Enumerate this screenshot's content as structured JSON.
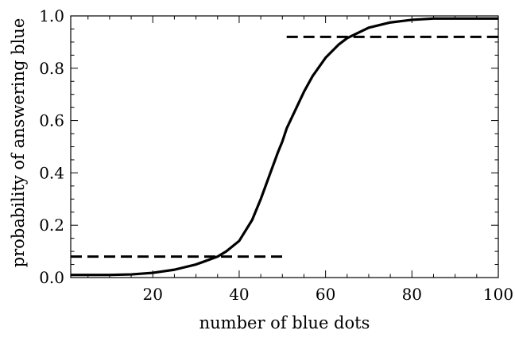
{
  "chart_data": {
    "type": "line",
    "title": "",
    "xlabel": "number of blue dots",
    "ylabel": "probability of answering blue",
    "xlim": [
      1,
      100
    ],
    "ylim": [
      0,
      1
    ],
    "x_ticks": [
      20,
      40,
      60,
      80,
      100
    ],
    "y_ticks": [
      0.0,
      0.2,
      0.4,
      0.6,
      0.8,
      1.0
    ],
    "x_tick_labels": [
      "20",
      "40",
      "60",
      "80",
      "100"
    ],
    "y_tick_labels": [
      "0.0",
      "0.2",
      "0.4",
      "0.6",
      "0.8",
      "1.0"
    ],
    "grid": false,
    "legend": "none",
    "series": [
      {
        "style": "solid",
        "color": "#000000",
        "x": [
          1,
          5,
          10,
          15,
          20,
          25,
          30,
          35,
          37,
          40,
          43,
          45,
          47,
          49,
          50,
          51,
          53,
          55,
          57,
          60,
          63,
          65,
          70,
          75,
          80,
          85,
          90,
          95,
          100
        ],
        "y": [
          0.01,
          0.01,
          0.01,
          0.012,
          0.018,
          0.03,
          0.05,
          0.08,
          0.1,
          0.14,
          0.22,
          0.3,
          0.39,
          0.48,
          0.52,
          0.57,
          0.64,
          0.71,
          0.77,
          0.84,
          0.89,
          0.915,
          0.955,
          0.975,
          0.985,
          0.99,
          0.99,
          0.99,
          0.99
        ]
      },
      {
        "style": "dashed",
        "color": "#000000",
        "x": [
          1,
          50
        ],
        "y": [
          0.08,
          0.08
        ]
      },
      {
        "style": "dashed",
        "color": "#000000",
        "x": [
          51,
          100
        ],
        "y": [
          0.92,
          0.92
        ]
      }
    ]
  }
}
